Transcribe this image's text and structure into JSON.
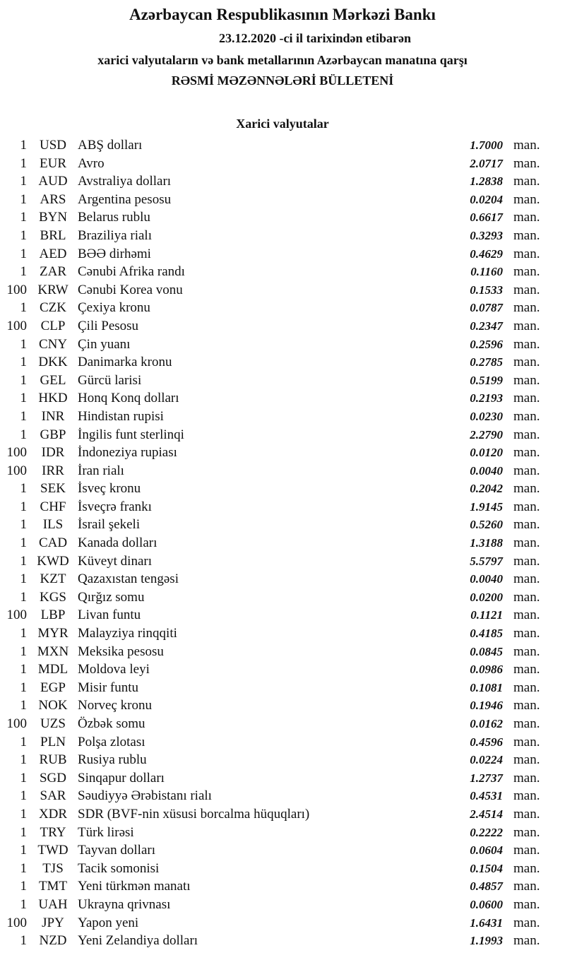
{
  "header": {
    "title": "Azərbaycan Respublikasının Mərkəzi Bankı",
    "date_line": "23.12.2020  -ci il tarixindən etibarən",
    "subtitle": "xarici valyutaların və bank metallarının Azərbaycan manatına qarşı",
    "bulletin": "RƏSMİ MƏZƏNNƏLƏRİ BÜLLETENİ"
  },
  "section_title": "Xarici valyutalar",
  "unit": "man.",
  "rates": [
    {
      "nominal": "1",
      "code": "USD",
      "name": "ABŞ dolları",
      "value": "1.7000"
    },
    {
      "nominal": "1",
      "code": "EUR",
      "name": "Avro",
      "value": "2.0717"
    },
    {
      "nominal": "1",
      "code": "AUD",
      "name": "Avstraliya dolları",
      "value": "1.2838"
    },
    {
      "nominal": "1",
      "code": "ARS",
      "name": "Argentina pesosu",
      "value": "0.0204"
    },
    {
      "nominal": "1",
      "code": "BYN",
      "name": "Belarus rublu",
      "value": "0.6617"
    },
    {
      "nominal": "1",
      "code": "BRL",
      "name": "Braziliya rialı",
      "value": "0.3293"
    },
    {
      "nominal": "1",
      "code": "AED",
      "name": "BƏƏ dirhəmi",
      "value": "0.4629"
    },
    {
      "nominal": "1",
      "code": "ZAR",
      "name": "Cənubi Afrika randı",
      "value": "0.1160"
    },
    {
      "nominal": "100",
      "code": "KRW",
      "name": "Cənubi Korea vonu",
      "value": "0.1533"
    },
    {
      "nominal": "1",
      "code": "CZK",
      "name": "Çexiya kronu",
      "value": "0.0787"
    },
    {
      "nominal": "100",
      "code": "CLP",
      "name": "Çili Pesosu",
      "value": "0.2347"
    },
    {
      "nominal": "1",
      "code": "CNY",
      "name": "Çin yuanı",
      "value": "0.2596"
    },
    {
      "nominal": "1",
      "code": "DKK",
      "name": "Danimarka kronu",
      "value": "0.2785"
    },
    {
      "nominal": "1",
      "code": "GEL",
      "name": "Gürcü larisi",
      "value": "0.5199"
    },
    {
      "nominal": "1",
      "code": "HKD",
      "name": "Honq Konq dolları",
      "value": "0.2193"
    },
    {
      "nominal": "1",
      "code": "INR",
      "name": "Hindistan rupisi",
      "value": "0.0230"
    },
    {
      "nominal": "1",
      "code": "GBP",
      "name": "İngilis funt sterlinqi",
      "value": "2.2790"
    },
    {
      "nominal": "100",
      "code": "IDR",
      "name": "İndoneziya rupiası",
      "value": "0.0120"
    },
    {
      "nominal": "100",
      "code": "IRR",
      "name": "İran rialı",
      "value": "0.0040"
    },
    {
      "nominal": "1",
      "code": "SEK",
      "name": "İsveç kronu",
      "value": "0.2042"
    },
    {
      "nominal": "1",
      "code": "CHF",
      "name": "İsveçrə frankı",
      "value": "1.9145"
    },
    {
      "nominal": "1",
      "code": "ILS",
      "name": "İsrail şekeli",
      "value": "0.5260"
    },
    {
      "nominal": "1",
      "code": "CAD",
      "name": "Kanada dolları",
      "value": "1.3188"
    },
    {
      "nominal": "1",
      "code": "KWD",
      "name": "Küveyt dinarı",
      "value": "5.5797"
    },
    {
      "nominal": "1",
      "code": "KZT",
      "name": "Qazaxıstan tengəsi",
      "value": "0.0040"
    },
    {
      "nominal": "1",
      "code": "KGS",
      "name": "Qırğız somu",
      "value": "0.0200"
    },
    {
      "nominal": "100",
      "code": "LBP",
      "name": "Livan funtu",
      "value": "0.1121"
    },
    {
      "nominal": "1",
      "code": "MYR",
      "name": "Malayziya rinqqiti",
      "value": "0.4185"
    },
    {
      "nominal": "1",
      "code": "MXN",
      "name": "Meksika pesosu",
      "value": "0.0845"
    },
    {
      "nominal": "1",
      "code": "MDL",
      "name": "Moldova leyi",
      "value": "0.0986"
    },
    {
      "nominal": "1",
      "code": "EGP",
      "name": "Misir funtu",
      "value": "0.1081"
    },
    {
      "nominal": "1",
      "code": "NOK",
      "name": "Norveç kronu",
      "value": "0.1946"
    },
    {
      "nominal": "100",
      "code": "UZS",
      "name": "Özbək somu",
      "value": "0.0162"
    },
    {
      "nominal": "1",
      "code": "PLN",
      "name": "Polşa zlotası",
      "value": "0.4596"
    },
    {
      "nominal": "1",
      "code": "RUB",
      "name": "Rusiya rublu",
      "value": "0.0224"
    },
    {
      "nominal": "1",
      "code": "SGD",
      "name": "Sinqapur dolları",
      "value": "1.2737"
    },
    {
      "nominal": "1",
      "code": "SAR",
      "name": "Səudiyyə Ərəbistanı rialı",
      "value": "0.4531"
    },
    {
      "nominal": "1",
      "code": "XDR",
      "name": "SDR (BVF-nin xüsusi borcalma hüquqları)",
      "value": "2.4514"
    },
    {
      "nominal": "1",
      "code": "TRY",
      "name": "Türk lirəsi",
      "value": "0.2222"
    },
    {
      "nominal": "1",
      "code": "TWD",
      "name": "Tayvan dolları",
      "value": "0.0604"
    },
    {
      "nominal": "1",
      "code": "TJS",
      "name": "Tacik somonisi",
      "value": "0.1504"
    },
    {
      "nominal": "1",
      "code": "TMT",
      "name": "Yeni türkmən manatı",
      "value": "0.4857"
    },
    {
      "nominal": "1",
      "code": "UAH",
      "name": "Ukrayna qrivnası",
      "value": "0.0600"
    },
    {
      "nominal": "100",
      "code": "JPY",
      "name": "Yapon yeni",
      "value": "1.6431"
    },
    {
      "nominal": "1",
      "code": "NZD",
      "name": "Yeni Zelandiya dolları",
      "value": "1.1993"
    }
  ]
}
